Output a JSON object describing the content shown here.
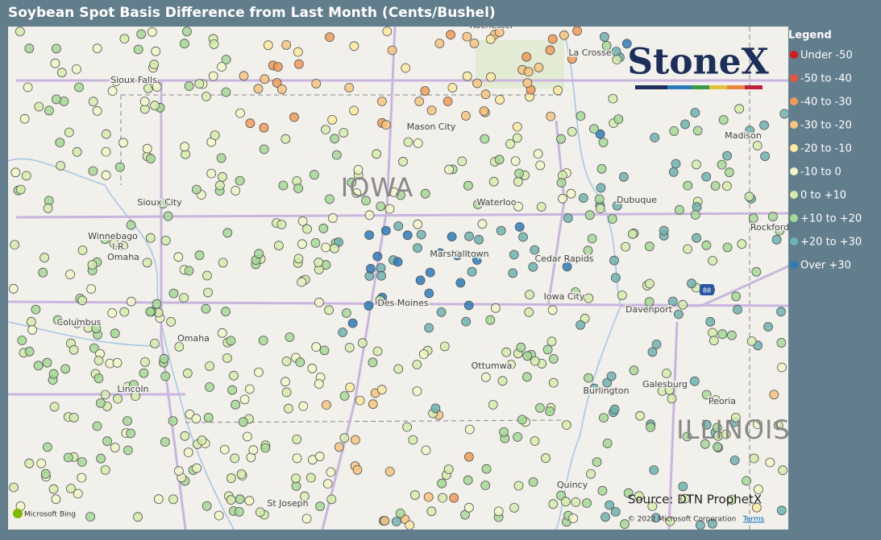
{
  "header": {
    "title": "Soybean Spot Basis Difference from Last Month (Cents/Bushel)"
  },
  "legend": {
    "title": "Legend",
    "items": [
      {
        "label": "Under -50",
        "color": "#d7191c"
      },
      {
        "label": "-50 to -40",
        "color": "#e8553b"
      },
      {
        "label": "-40 to -30",
        "color": "#f19a58"
      },
      {
        "label": "-30 to -20",
        "color": "#f7c47f"
      },
      {
        "label": "-20 to -10",
        "color": "#fdeaa0"
      },
      {
        "label": "-10 to 0",
        "color": "#f2f7c8"
      },
      {
        "label": "0 to +10",
        "color": "#d5ecab"
      },
      {
        "label": "+10 to +20",
        "color": "#a6d896"
      },
      {
        "label": "+20 to +30",
        "color": "#6db3b0"
      },
      {
        "label": "Over +30",
        "color": "#2b7bba"
      }
    ]
  },
  "logo": {
    "text": "StoneX"
  },
  "map": {
    "labels": [
      "Rochester",
      "La Crosse",
      "Sioux Falls",
      "Mason City",
      "Madison",
      "Sioux City",
      "Waterloo",
      "Dubuque",
      "Winnebago",
      "I.R.",
      "Omaha",
      "Marshalltown",
      "Cedar Rapids",
      "Rockford",
      "Columbus",
      "Des Moines",
      "Iowa City",
      "Davenport",
      "Omaha",
      "Ottumwa",
      "Galesburg",
      "Burlington",
      "Lincoln",
      "Peoria",
      "Quincy",
      "St Joseph"
    ],
    "states": [
      "IOWA",
      "ILLINOIS"
    ],
    "shield": "88"
  },
  "footer": {
    "source": "Source: DTN ProphetX",
    "copyright": "© 2022 Microsoft Corporation",
    "terms": "Terms",
    "provider": "Microsoft Bing"
  }
}
